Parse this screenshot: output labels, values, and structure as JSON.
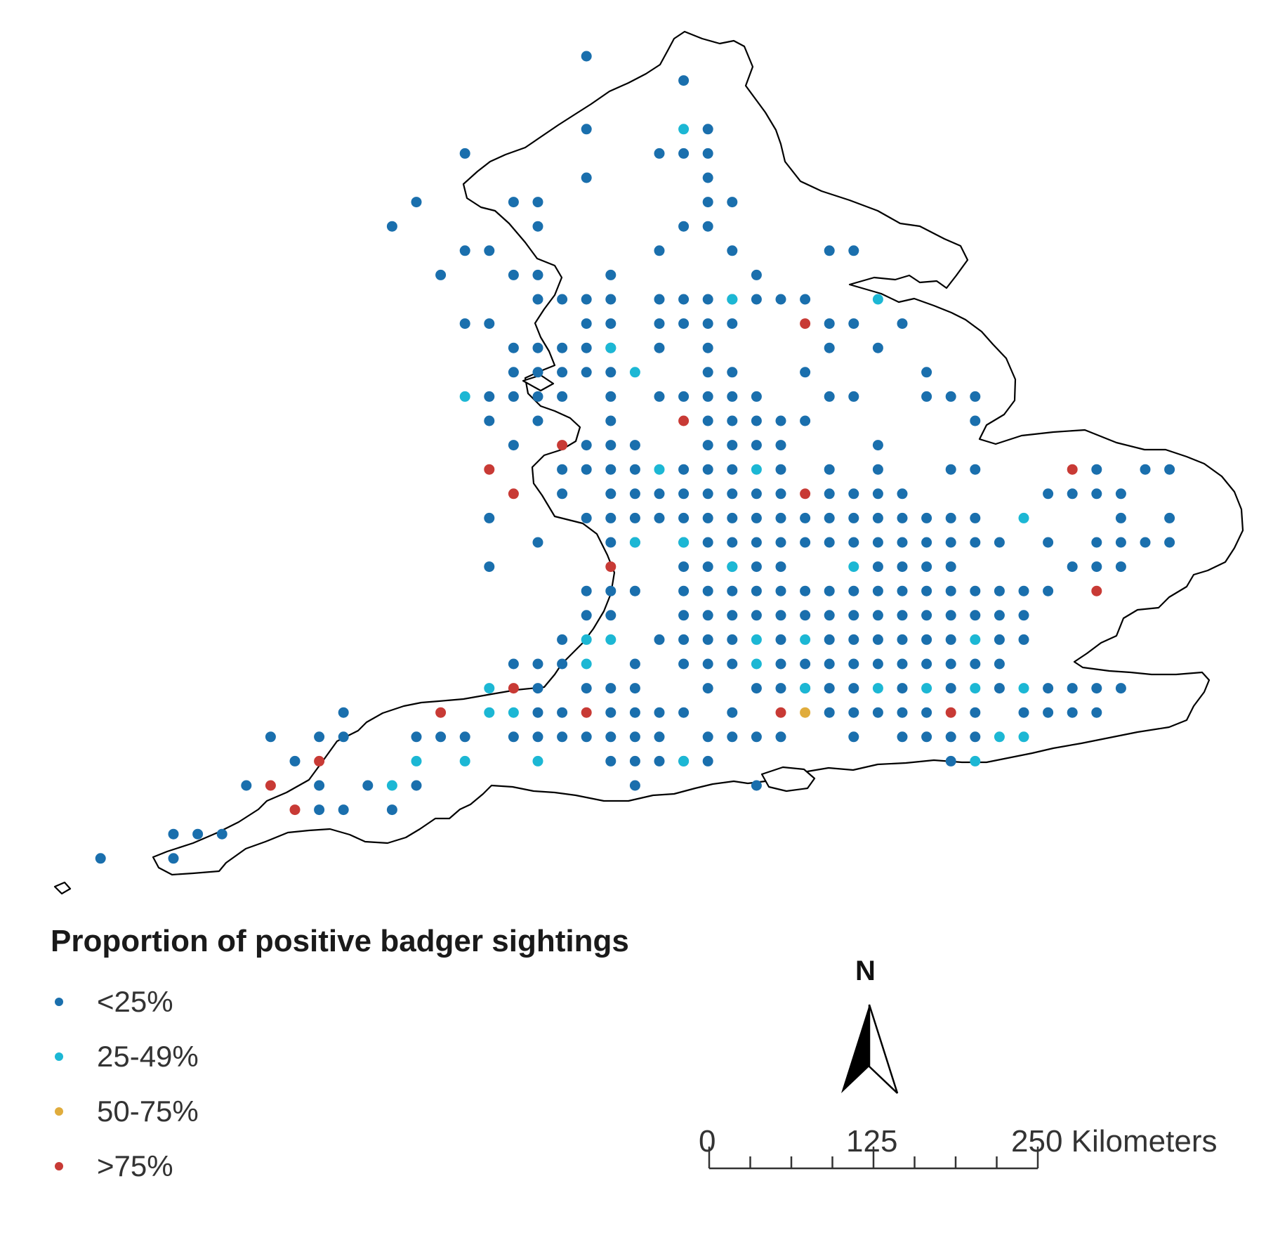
{
  "legend": {
    "title": "Proportion of positive badger sightings",
    "classes": [
      {
        "label": "<25%",
        "color": "#1a6fad",
        "key": "a"
      },
      {
        "label": "25-49%",
        "color": "#1cb7d4",
        "key": "b"
      },
      {
        "label": "50-75%",
        "color": "#e0ac3c",
        "key": "c"
      },
      {
        "label": ">75%",
        "color": "#c83a35",
        "key": "d"
      }
    ]
  },
  "north_arrow": {
    "label": "N"
  },
  "scale_bar": {
    "labels": [
      "0",
      "125",
      "250 Kilometers"
    ],
    "unit": "Kilometers"
  },
  "map": {
    "region": "England",
    "symbol_key": {
      "a": "<25%",
      "b": "25-49%",
      "c": "50-75%",
      "d": ">75%"
    },
    "grid_rows": [
      [
        "a:27"
      ],
      [
        "a:31"
      ],
      [],
      [
        "a:27",
        "b:31",
        "a:32"
      ],
      [
        "a:22",
        "a:30,31",
        "a:32"
      ],
      [
        "a:27",
        "a:32"
      ],
      [
        "a:20",
        "a:24,25",
        "a:32,33"
      ],
      [
        "a:19",
        "a:25",
        "a:31,32"
      ],
      [
        "a:22,23",
        "a:30",
        "a:33",
        "a:37,38"
      ],
      [
        "a:21",
        "a:24,25",
        "a:28",
        "a:34"
      ],
      [
        "a:25,26,27,28",
        "a:30,31,32,33",
        "b:33",
        "a:34,35,36",
        "b:39"
      ],
      [
        "a:22,23",
        "a:27,28",
        "a:30,31,32,33",
        "d:36",
        "a:37,38",
        "a:40"
      ],
      [
        "a:24,25,26,27,28",
        "b:28",
        "a:30",
        "a:32",
        "a:37",
        "a:39"
      ],
      [
        "a:24,25,26,27,28",
        "b:29",
        "a:32,33",
        "a:36",
        "a:41"
      ],
      [
        "b:22",
        "a:23,24,25,26",
        "a:28",
        "a:30,31,32,33,34",
        "a:37,38",
        "a:41,42,43"
      ],
      [
        "a:23",
        "a:25",
        "a:28",
        "d:31",
        "a:32,33,34,35",
        "a:36",
        "a:43"
      ],
      [
        "a:24",
        "d:26",
        "a:27,28,29",
        "a:32,33,34,35",
        "a:39"
      ],
      [
        "d:23",
        "a:26,27,28,29",
        "b:30",
        "a:31,32,33",
        "b:34",
        "a:35",
        "a:37",
        "a:39",
        "a:42,43",
        "d:47",
        "a:48",
        "a:50,51"
      ],
      [
        "d:24",
        "a:26",
        "a:28,29,30,31,32,33,34,35",
        "d:36",
        "a:37,38,39,40",
        "a:46,47,48,49"
      ],
      [
        "a:23",
        "a:27,28,29,30,31,32,33,34,35,36,37,38,39,40",
        "a:41,42,43",
        "b:45",
        "a:49",
        "a:51"
      ],
      [
        "a:25",
        "a:28,29",
        "b:29",
        "a:31",
        "b:31",
        "a:32,33,34,35",
        "a:36,37,38,39,40,41,42,43,44",
        "a:46",
        "a:48,49,50,51"
      ],
      [
        "a:23",
        "d:28",
        "a:31,32,33",
        "b:33",
        "a:34,35",
        "b:38",
        "a:39,40,41,42",
        "a:47,48,49"
      ],
      [
        "a:27,28",
        "a:29",
        "a:31,32,33,34,35,36,37,38,39,40,41,42,43,44,45",
        "a:46",
        "d:48"
      ],
      [
        "a:27,28",
        "a:31,32,33,34,35,36,37,38,39,40,41,42,43,44,45"
      ],
      [
        "a:26",
        "b:27,28",
        "a:30",
        "a:31,32,33",
        "b:34",
        "a:35",
        "b:36",
        "a:37,38,39,40,41,42",
        "b:43",
        "a:44,45"
      ],
      [
        "a:24,25,26",
        "b:27",
        "a:29",
        "a:31,32,33",
        "b:34",
        "a:35,36,37,38,39,40,41,42,43,44"
      ],
      [
        "b:23",
        "d:24",
        "a:25",
        "a:27,28,29",
        "a:32",
        "a:34,35,36,37",
        "b:36",
        "a:38",
        "b:39",
        "a:40",
        "b:41",
        "a:42",
        "b:43",
        "a:44",
        "b:45",
        "a:46,47,48,49"
      ],
      [
        "a:17",
        "d:21",
        "b:23,24",
        "a:25",
        "a:26",
        "d:27",
        "a:28,29,30,31",
        "a:33",
        "d:35",
        "c:36",
        "a:37,38,39,40,41",
        "d:42",
        "a:43",
        "a:45,46,47,48"
      ],
      [
        "a:14",
        "a:16,17",
        "a:20,21,22",
        "a:24,25,26,27,28,29,30",
        "a:32,33,34,35",
        "a:38",
        "a:40,41,42,43",
        "b:44,45"
      ],
      [
        "a:15",
        "d:16",
        "b:20",
        "b:22",
        "b:25",
        "a:28,29,30,31",
        "b:31",
        "a:32",
        "a:42",
        "b:43"
      ],
      [
        "a:13",
        "d:14",
        "a:16",
        "a:18",
        "b:19",
        "a:20",
        "a:29",
        "a:34"
      ],
      [
        "d:15",
        "a:16,17",
        "a:19"
      ],
      [
        "a:10,11,12"
      ],
      [
        "a:7",
        "a:10"
      ]
    ]
  }
}
